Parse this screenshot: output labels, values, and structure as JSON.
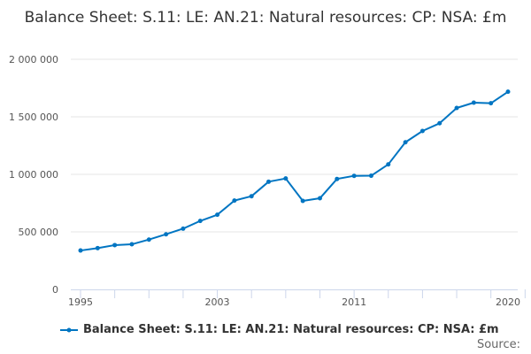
{
  "chart_data": {
    "type": "line",
    "title": "Balance Sheet: S.11: LE: AN.21: Natural resources: CP: NSA: £m",
    "xlabel": "",
    "ylabel": "",
    "x": [
      1995,
      1996,
      1997,
      1998,
      1999,
      2000,
      2001,
      2002,
      2003,
      2004,
      2005,
      2006,
      2007,
      2008,
      2009,
      2010,
      2011,
      2012,
      2013,
      2014,
      2015,
      2016,
      2017,
      2018,
      2019,
      2020
    ],
    "series": [
      {
        "name": "Balance Sheet: S.11: LE: AN.21: Natural resources: CP: NSA: £m",
        "color": "#0075c2",
        "values": [
          338000,
          359000,
          385000,
          392000,
          433000,
          479000,
          528000,
          595000,
          649000,
          772000,
          810000,
          936000,
          964000,
          769000,
          792000,
          960000,
          987000,
          988000,
          1087000,
          1279000,
          1377000,
          1444000,
          1577000,
          1623000,
          1618000,
          1718000
        ]
      }
    ],
    "ylim": [
      0,
      2000000
    ],
    "xlim": [
      1995,
      2020
    ],
    "yticks": [
      0,
      500000,
      1000000,
      1500000,
      2000000
    ],
    "ytick_labels": [
      "0",
      "500 000",
      "1 000 000",
      "1 500 000",
      "2 000 000"
    ],
    "xtick_labels": [
      "1995",
      "2003",
      "2011",
      "2020"
    ],
    "grid": true,
    "legend_placement": "bottom"
  },
  "source_label": "Source:"
}
